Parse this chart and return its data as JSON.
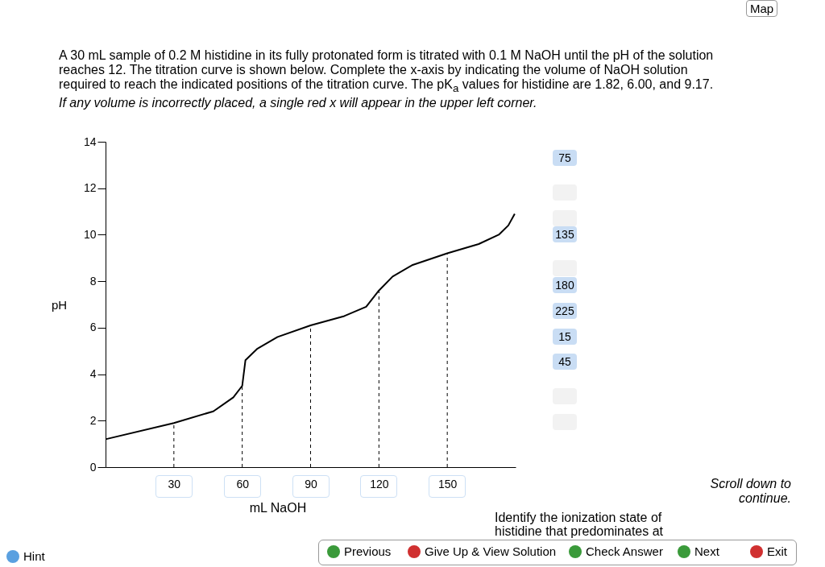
{
  "chart_data": {
    "type": "line",
    "title": "A 30 mL sample of 0.2 M histidine in its fully protonated form is titrated with 0.1 M NaOH until the pH of the solution reaches 12. The titration curve is shown below. Complete the x-axis by indicating the volume of NaOH solution required to reach the indicated positions of the titration curve. The pK$_{a}$ values for histidine are 1.82, 6.00, and 9.17.",
    "subtitle": "If any volume is incorrectly placed, a single red x will appear in the upper left corner.",
    "xlabel": "mL NaOH",
    "ylabel": "pH",
    "x": [
      0,
      30,
      47.3,
      56.1,
      60,
      61.4,
      66.7,
      75.5,
      90,
      104.8,
      114.4,
      120,
      126,
      134.8,
      150,
      163.8,
      172.6,
      176.8,
      179.6
    ],
    "series": [
      {
        "color": "#000000",
        "values": [
          1.2,
          1.9,
          2.4,
          3.0,
          3.5,
          4.6,
          5.1,
          5.6,
          6.1,
          6.5,
          6.9,
          7.6,
          8.2,
          8.7,
          9.2,
          9.6,
          10.0,
          10.4,
          10.9
        ]
      }
    ],
    "xlim": [
      0,
      180
    ],
    "xticks": [
      30,
      60,
      90,
      120,
      150
    ],
    "ylim": [
      0,
      14
    ],
    "yticks": [
      0,
      2,
      4,
      6,
      8,
      10,
      12,
      14
    ],
    "grid": false,
    "marker": "none",
    "line_style": "solid",
    "ref_lines": [
      {
        "axis": "x",
        "value": 30,
        "line_style": "dashed"
      },
      {
        "axis": "x",
        "value": 60,
        "line_style": "dashed"
      },
      {
        "axis": "x",
        "value": 90,
        "line_style": "dashed"
      },
      {
        "axis": "x",
        "value": 120,
        "line_style": "dashed"
      },
      {
        "axis": "x",
        "value": 150,
        "line_style": "dashed"
      }
    ],
    "annotations": [
      "75",
      "135",
      "180",
      "225",
      "15",
      "45",
      "Scroll down to continue.",
      "Identify the ionization state of histidine that predominates at",
      "Previous",
      "Give Up & View Solution",
      "Check Answer",
      "Next",
      "Exit",
      "Hint",
      "Map"
    ]
  }
}
